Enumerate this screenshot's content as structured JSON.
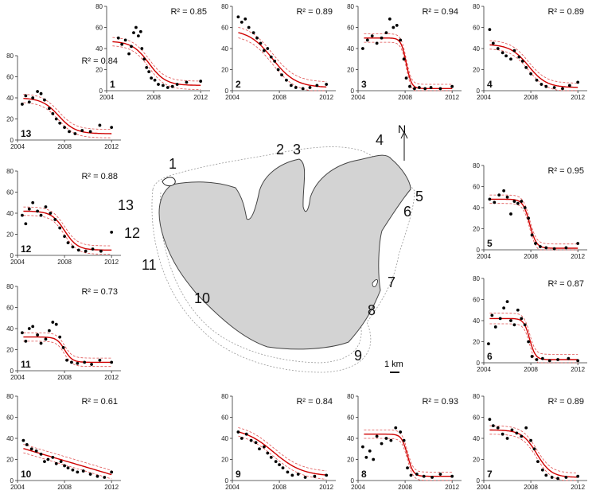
{
  "colors": {
    "fit": "#d00000",
    "ci": "#e05050",
    "point": "#000000",
    "map_fill": "#d3d3d3"
  },
  "map": {
    "labels": [
      "1",
      "2",
      "3",
      "4",
      "5",
      "6",
      "7",
      "8",
      "9",
      "10",
      "11",
      "12",
      "13"
    ],
    "north": "N",
    "scale": "1 km"
  },
  "chart_data": [
    {
      "id": "1",
      "type": "scatter",
      "r2": "R² = 0.85",
      "xticks": [
        "2004",
        "2008",
        "2012"
      ],
      "yticks": [
        "0",
        "20",
        "40",
        "60",
        "80"
      ],
      "xlim": [
        2004,
        2012.8
      ],
      "ylim": [
        0,
        80
      ],
      "fit": {
        "form": "logistic",
        "upper": 47,
        "lower": 5,
        "mid": 2007.6,
        "slope": 1.4,
        "ci": 4
      },
      "points": [
        [
          2005,
          50
        ],
        [
          2005.3,
          44
        ],
        [
          2005.6,
          48
        ],
        [
          2005.9,
          35
        ],
        [
          2006.1,
          42
        ],
        [
          2006.3,
          55
        ],
        [
          2006.5,
          60
        ],
        [
          2006.7,
          52
        ],
        [
          2006.9,
          56
        ],
        [
          2007,
          40
        ],
        [
          2007.2,
          30
        ],
        [
          2007.4,
          22
        ],
        [
          2007.6,
          18
        ],
        [
          2007.8,
          12
        ],
        [
          2008.1,
          10
        ],
        [
          2008.4,
          6
        ],
        [
          2008.8,
          5
        ],
        [
          2009.2,
          3
        ],
        [
          2009.6,
          4
        ],
        [
          2010,
          6
        ],
        [
          2010.8,
          8
        ],
        [
          2012,
          9
        ]
      ]
    },
    {
      "id": "2",
      "type": "scatter",
      "r2": "R² = 0.89",
      "xticks": [
        "2004",
        "2008",
        "2012"
      ],
      "yticks": [
        "0",
        "20",
        "40",
        "60",
        "80"
      ],
      "xlim": [
        2004,
        2012.8
      ],
      "ylim": [
        0,
        80
      ],
      "fit": {
        "form": "logistic",
        "upper": 58,
        "lower": 3,
        "mid": 2007.4,
        "slope": 1.0,
        "ci": 5
      },
      "points": [
        [
          2004.5,
          70
        ],
        [
          2004.8,
          65
        ],
        [
          2005.1,
          68
        ],
        [
          2005.4,
          60
        ],
        [
          2005.8,
          55
        ],
        [
          2006.1,
          50
        ],
        [
          2006.4,
          45
        ],
        [
          2006.7,
          38
        ],
        [
          2007,
          40
        ],
        [
          2007.3,
          32
        ],
        [
          2007.6,
          28
        ],
        [
          2007.9,
          20
        ],
        [
          2008.2,
          15
        ],
        [
          2008.6,
          10
        ],
        [
          2009,
          5
        ],
        [
          2009.4,
          3
        ],
        [
          2010,
          2
        ],
        [
          2010.6,
          3
        ],
        [
          2011.2,
          5
        ],
        [
          2012,
          6
        ]
      ]
    },
    {
      "id": "3",
      "type": "scatter",
      "r2": "R² = 0.94",
      "xticks": [
        "2004",
        "2008",
        "2012"
      ],
      "yticks": [
        "0",
        "20",
        "40",
        "60",
        "80"
      ],
      "xlim": [
        2004,
        2012.8
      ],
      "ylim": [
        0,
        80
      ],
      "fit": {
        "form": "logistic",
        "upper": 50,
        "lower": 2,
        "mid": 2008.1,
        "slope": 4.5,
        "ci": 4
      },
      "points": [
        [
          2004.4,
          40
        ],
        [
          2004.8,
          48
        ],
        [
          2005.2,
          52
        ],
        [
          2005.6,
          45
        ],
        [
          2006,
          50
        ],
        [
          2006.4,
          55
        ],
        [
          2006.7,
          68
        ],
        [
          2007,
          60
        ],
        [
          2007.3,
          62
        ],
        [
          2007.6,
          48
        ],
        [
          2007.9,
          30
        ],
        [
          2008.1,
          12
        ],
        [
          2008.4,
          4
        ],
        [
          2008.8,
          2
        ],
        [
          2009.2,
          3
        ],
        [
          2009.7,
          2
        ],
        [
          2010.2,
          3
        ],
        [
          2011,
          2
        ],
        [
          2012,
          4
        ]
      ]
    },
    {
      "id": "4",
      "type": "scatter",
      "r2": "R² = 0.89",
      "xticks": [
        "2004",
        "2008",
        "2012"
      ],
      "yticks": [
        "0",
        "20",
        "40",
        "60",
        "80"
      ],
      "xlim": [
        2004,
        2012.8
      ],
      "ylim": [
        0,
        80
      ],
      "fit": {
        "form": "logistic",
        "upper": 44,
        "lower": 3,
        "mid": 2007.8,
        "slope": 1.3,
        "ci": 4
      },
      "points": [
        [
          2004.5,
          58
        ],
        [
          2004.8,
          45
        ],
        [
          2005.2,
          40
        ],
        [
          2005.6,
          36
        ],
        [
          2005.9,
          33
        ],
        [
          2006.3,
          30
        ],
        [
          2006.6,
          38
        ],
        [
          2007,
          32
        ],
        [
          2007.3,
          28
        ],
        [
          2007.6,
          22
        ],
        [
          2008,
          16
        ],
        [
          2008.5,
          10
        ],
        [
          2008.9,
          6
        ],
        [
          2009.3,
          4
        ],
        [
          2010,
          3
        ],
        [
          2010.7,
          2
        ],
        [
          2011.3,
          5
        ],
        [
          2012,
          8
        ]
      ]
    },
    {
      "id": "5",
      "type": "scatter",
      "r2": "R² = 0.95",
      "xticks": [
        "2004",
        "2008",
        "2012"
      ],
      "yticks": [
        "0",
        "20",
        "40",
        "60",
        "80"
      ],
      "xlim": [
        2004,
        2012.8
      ],
      "ylim": [
        0,
        80
      ],
      "fit": {
        "form": "logistic",
        "upper": 48,
        "lower": 1.5,
        "mid": 2007.9,
        "slope": 3.5,
        "ci": 4
      },
      "points": [
        [
          2004.5,
          48
        ],
        [
          2004.9,
          45
        ],
        [
          2005.3,
          52
        ],
        [
          2005.7,
          56
        ],
        [
          2006,
          50
        ],
        [
          2006.3,
          34
        ],
        [
          2006.6,
          46
        ],
        [
          2006.9,
          44
        ],
        [
          2007.2,
          46
        ],
        [
          2007.5,
          40
        ],
        [
          2007.8,
          30
        ],
        [
          2008.1,
          14
        ],
        [
          2008.4,
          6
        ],
        [
          2008.8,
          3
        ],
        [
          2009.3,
          2
        ],
        [
          2010,
          1
        ],
        [
          2011,
          2
        ],
        [
          2012,
          6
        ]
      ]
    },
    {
      "id": "6",
      "type": "scatter",
      "r2": "R² = 0.87",
      "xticks": [
        "2004",
        "2008",
        "2012"
      ],
      "yticks": [
        "0",
        "20",
        "40",
        "60",
        "80"
      ],
      "xlim": [
        2004,
        2012.8
      ],
      "ylim": [
        0,
        80
      ],
      "fit": {
        "form": "logistic",
        "upper": 42,
        "lower": 3,
        "mid": 2007.9,
        "slope": 4.0,
        "ci": 5
      },
      "points": [
        [
          2004.4,
          18
        ],
        [
          2004.7,
          45
        ],
        [
          2005,
          34
        ],
        [
          2005.4,
          42
        ],
        [
          2005.7,
          52
        ],
        [
          2006,
          58
        ],
        [
          2006.3,
          40
        ],
        [
          2006.6,
          36
        ],
        [
          2006.9,
          50
        ],
        [
          2007.2,
          42
        ],
        [
          2007.5,
          36
        ],
        [
          2007.8,
          20
        ],
        [
          2008.1,
          6
        ],
        [
          2008.5,
          3
        ],
        [
          2009,
          4
        ],
        [
          2009.6,
          2
        ],
        [
          2010.3,
          3
        ],
        [
          2011.2,
          4
        ],
        [
          2012,
          2
        ]
      ]
    },
    {
      "id": "7",
      "type": "scatter",
      "r2": "R² = 0.89",
      "xticks": [
        "2004",
        "2008",
        "2012"
      ],
      "yticks": [
        "0",
        "20",
        "40",
        "60",
        "80"
      ],
      "xlim": [
        2004,
        2012.8
      ],
      "ylim": [
        0,
        80
      ],
      "fit": {
        "form": "logistic",
        "upper": 48,
        "lower": 3,
        "mid": 2008.5,
        "slope": 1.6,
        "ci": 4
      },
      "points": [
        [
          2004.5,
          58
        ],
        [
          2004.8,
          52
        ],
        [
          2005.2,
          50
        ],
        [
          2005.6,
          44
        ],
        [
          2006,
          40
        ],
        [
          2006.4,
          48
        ],
        [
          2006.8,
          45
        ],
        [
          2007.2,
          42
        ],
        [
          2007.6,
          50
        ],
        [
          2008,
          38
        ],
        [
          2008.3,
          30
        ],
        [
          2008.6,
          18
        ],
        [
          2009,
          10
        ],
        [
          2009.3,
          5
        ],
        [
          2009.8,
          3
        ],
        [
          2010.3,
          2
        ],
        [
          2011,
          3
        ],
        [
          2012,
          4
        ]
      ]
    },
    {
      "id": "8",
      "type": "scatter",
      "r2": "R² = 0.93",
      "xticks": [
        "2004",
        "2008",
        "2012"
      ],
      "yticks": [
        "0",
        "20",
        "40",
        "60",
        "80"
      ],
      "xlim": [
        2004,
        2012.8
      ],
      "ylim": [
        0,
        80
      ],
      "fit": {
        "form": "logistic",
        "upper": 44,
        "lower": 4,
        "mid": 2008.2,
        "slope": 4.0,
        "ci": 4
      },
      "points": [
        [
          2004.4,
          32
        ],
        [
          2004.7,
          22
        ],
        [
          2005,
          28
        ],
        [
          2005.3,
          20
        ],
        [
          2005.6,
          42
        ],
        [
          2006,
          35
        ],
        [
          2006.4,
          40
        ],
        [
          2006.8,
          38
        ],
        [
          2007.2,
          50
        ],
        [
          2007.6,
          46
        ],
        [
          2007.9,
          38
        ],
        [
          2008.2,
          12
        ],
        [
          2008.5,
          5
        ],
        [
          2009,
          6
        ],
        [
          2009.6,
          4
        ],
        [
          2010.3,
          3
        ],
        [
          2011,
          6
        ],
        [
          2012,
          4
        ]
      ]
    },
    {
      "id": "9",
      "type": "scatter",
      "r2": "R² = 0.84",
      "xticks": [
        "2004",
        "2008",
        "2012"
      ],
      "yticks": [
        "0",
        "20",
        "40",
        "60",
        "80"
      ],
      "xlim": [
        2004,
        2012.8
      ],
      "ylim": [
        0,
        80
      ],
      "fit": {
        "form": "logistic",
        "upper": 50,
        "lower": 4,
        "mid": 2007.5,
        "slope": 0.8,
        "ci": 4
      },
      "points": [
        [
          2004.5,
          46
        ],
        [
          2004.8,
          40
        ],
        [
          2005.2,
          44
        ],
        [
          2005.6,
          38
        ],
        [
          2006,
          36
        ],
        [
          2006.3,
          30
        ],
        [
          2006.7,
          32
        ],
        [
          2007,
          26
        ],
        [
          2007.3,
          22
        ],
        [
          2007.7,
          18
        ],
        [
          2008,
          15
        ],
        [
          2008.3,
          12
        ],
        [
          2008.7,
          8
        ],
        [
          2009.1,
          5
        ],
        [
          2009.6,
          6
        ],
        [
          2010.2,
          3
        ],
        [
          2011,
          4
        ],
        [
          2012,
          5
        ]
      ]
    },
    {
      "id": "10",
      "type": "scatter",
      "r2": "R² = 0.61",
      "xticks": [
        "2004",
        "2008",
        "2012"
      ],
      "yticks": [
        "0",
        "20",
        "40",
        "60",
        "80"
      ],
      "xlim": [
        2004,
        2012.8
      ],
      "ylim": [
        0,
        80
      ],
      "fit": {
        "form": "linear",
        "intercept": 32,
        "slope": -3.3,
        "ci": 4
      },
      "points": [
        [
          2004.5,
          38
        ],
        [
          2004.8,
          34
        ],
        [
          2005.2,
          30
        ],
        [
          2005.6,
          28
        ],
        [
          2006,
          25
        ],
        [
          2006.3,
          18
        ],
        [
          2006.6,
          20
        ],
        [
          2007,
          22
        ],
        [
          2007.3,
          16
        ],
        [
          2007.7,
          18
        ],
        [
          2008,
          14
        ],
        [
          2008.3,
          12
        ],
        [
          2008.7,
          10
        ],
        [
          2009.1,
          8
        ],
        [
          2009.6,
          9
        ],
        [
          2010.2,
          6
        ],
        [
          2010.8,
          4
        ],
        [
          2011.4,
          3
        ],
        [
          2012,
          8
        ]
      ]
    },
    {
      "id": "11",
      "type": "scatter",
      "r2": "R² = 0.73",
      "xticks": [
        "2004",
        "2008",
        "2012"
      ],
      "yticks": [
        "0",
        "20",
        "40",
        "60",
        "80"
      ],
      "xlim": [
        2004,
        2012.8
      ],
      "ylim": [
        0,
        80
      ],
      "fit": {
        "form": "logistic",
        "upper": 32,
        "lower": 8,
        "mid": 2008,
        "slope": 3.0,
        "ci": 4
      },
      "points": [
        [
          2004.4,
          36
        ],
        [
          2004.7,
          28
        ],
        [
          2005,
          40
        ],
        [
          2005.3,
          42
        ],
        [
          2005.7,
          34
        ],
        [
          2006,
          26
        ],
        [
          2006.4,
          30
        ],
        [
          2006.7,
          38
        ],
        [
          2007,
          46
        ],
        [
          2007.3,
          44
        ],
        [
          2007.6,
          32
        ],
        [
          2007.9,
          22
        ],
        [
          2008.2,
          10
        ],
        [
          2008.6,
          8
        ],
        [
          2009.1,
          7
        ],
        [
          2009.7,
          8
        ],
        [
          2010.3,
          6
        ],
        [
          2011,
          10
        ],
        [
          2012,
          8
        ]
      ]
    },
    {
      "id": "12",
      "type": "scatter",
      "r2": "R² = 0.88",
      "xticks": [
        "2004",
        "2008",
        "2012"
      ],
      "yticks": [
        "0",
        "20",
        "40",
        "60",
        "80"
      ],
      "xlim": [
        2004,
        2012.8
      ],
      "ylim": [
        0,
        80
      ],
      "fit": {
        "form": "logistic",
        "upper": 42,
        "lower": 5,
        "mid": 2008,
        "slope": 1.8,
        "ci": 4
      },
      "points": [
        [
          2004.4,
          38
        ],
        [
          2004.7,
          30
        ],
        [
          2005,
          44
        ],
        [
          2005.3,
          50
        ],
        [
          2005.7,
          42
        ],
        [
          2006,
          38
        ],
        [
          2006.4,
          46
        ],
        [
          2006.8,
          40
        ],
        [
          2007.2,
          34
        ],
        [
          2007.6,
          26
        ],
        [
          2008,
          18
        ],
        [
          2008.3,
          12
        ],
        [
          2008.7,
          8
        ],
        [
          2009.2,
          5
        ],
        [
          2009.8,
          4
        ],
        [
          2010.4,
          6
        ],
        [
          2011.1,
          4
        ],
        [
          2012,
          22
        ]
      ]
    },
    {
      "id": "13",
      "type": "scatter",
      "r2": "R² = 0.84",
      "xticks": [
        "2004",
        "2008",
        "2012"
      ],
      "yticks": [
        "0",
        "20",
        "40",
        "60",
        "80"
      ],
      "xlim": [
        2004,
        2012.8
      ],
      "ylim": [
        0,
        80
      ],
      "fit": {
        "form": "logistic",
        "upper": 40,
        "lower": 6,
        "mid": 2007.5,
        "slope": 1.4,
        "ci": 4
      },
      "points": [
        [
          2004.4,
          34
        ],
        [
          2004.7,
          42
        ],
        [
          2005,
          36
        ],
        [
          2005.3,
          40
        ],
        [
          2005.7,
          46
        ],
        [
          2006,
          44
        ],
        [
          2006.3,
          38
        ],
        [
          2006.7,
          30
        ],
        [
          2007,
          25
        ],
        [
          2007.3,
          20
        ],
        [
          2007.6,
          16
        ],
        [
          2008,
          12
        ],
        [
          2008.4,
          8
        ],
        [
          2008.9,
          6
        ],
        [
          2009.5,
          9
        ],
        [
          2010.2,
          8
        ],
        [
          2011,
          14
        ],
        [
          2012,
          12
        ]
      ]
    }
  ]
}
